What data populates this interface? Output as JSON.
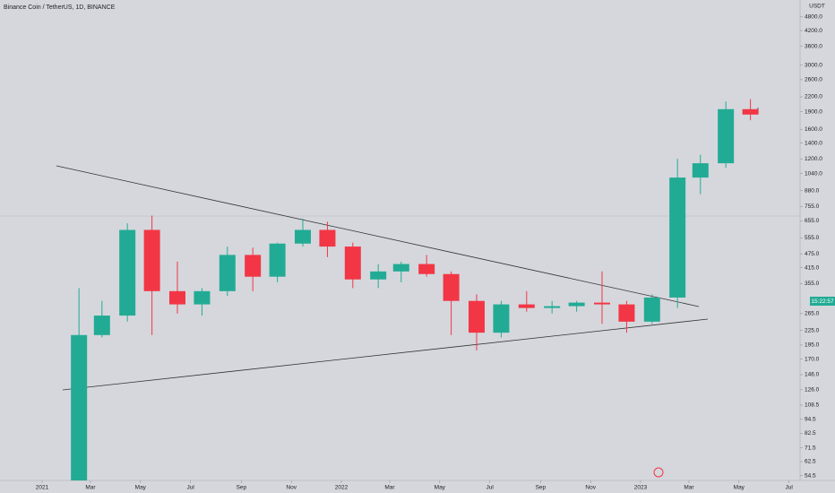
{
  "chart_data": {
    "type": "candlestick",
    "title": "Binance Coin / TetherUS, 1D, BINANCE",
    "y_unit": "USDT",
    "price_box_label": "15:22:57",
    "log_scale": true,
    "up_color": "#22ab94",
    "down_color": "#f23645",
    "x": [
      "2021-02",
      "2021-03",
      "2021-04",
      "2021-05",
      "2021-06",
      "2021-07",
      "2021-08",
      "2021-09",
      "2021-10",
      "2021-11",
      "2021-12",
      "2022-01",
      "2022-02",
      "2022-03",
      "2022-04",
      "2022-05",
      "2022-06",
      "2022-07",
      "2022-08",
      "2022-09",
      "2022-10",
      "2022-11",
      "2022-12",
      "2023-01",
      "2023-02",
      "2023-03",
      "2023-04",
      "2023-05"
    ],
    "open": [
      52,
      215,
      260,
      600,
      330,
      290,
      330,
      470,
      380,
      525,
      600,
      510,
      370,
      400,
      430,
      390,
      300,
      220,
      290,
      280,
      285,
      295,
      290,
      245,
      310,
      1000,
      1150,
      1950
    ],
    "high": [
      340,
      300,
      640,
      690,
      440,
      340,
      510,
      505,
      530,
      670,
      650,
      530,
      430,
      440,
      470,
      400,
      320,
      300,
      330,
      300,
      300,
      400,
      300,
      320,
      1200,
      1250,
      2100,
      2150
    ],
    "low": [
      52,
      210,
      245,
      215,
      265,
      260,
      315,
      330,
      360,
      510,
      460,
      340,
      340,
      360,
      380,
      215,
      185,
      210,
      270,
      265,
      270,
      240,
      220,
      240,
      280,
      850,
      1100,
      1750
    ],
    "close": [
      215,
      260,
      600,
      330,
      290,
      330,
      470,
      380,
      525,
      600,
      510,
      370,
      400,
      430,
      390,
      300,
      220,
      290,
      280,
      285,
      295,
      290,
      245,
      310,
      1000,
      1150,
      1950,
      1850
    ],
    "ylim": [
      52,
      5660
    ],
    "yticks": [
      {
        "value": 4800,
        "label": "4800.0"
      },
      {
        "value": 4200,
        "label": "4200.0"
      },
      {
        "value": 3600,
        "label": "3600.0"
      },
      {
        "value": 3000,
        "label": "3000.0"
      },
      {
        "value": 2600,
        "label": "2600.0"
      },
      {
        "value": 2200,
        "label": "2200.0"
      },
      {
        "value": 1900,
        "label": "1900.0"
      },
      {
        "value": 1600,
        "label": "1600.0"
      },
      {
        "value": 1400,
        "label": "1400.0"
      },
      {
        "value": 1200,
        "label": "1200.0"
      },
      {
        "value": 1040,
        "label": "1040.0"
      },
      {
        "value": 880,
        "label": "880.0"
      },
      {
        "value": 755,
        "label": "755.0"
      },
      {
        "value": 655,
        "label": "655.0"
      },
      {
        "value": 555,
        "label": "555.0"
      },
      {
        "value": 475,
        "label": "475.0"
      },
      {
        "value": 415,
        "label": "415.0"
      },
      {
        "value": 355,
        "label": "355.0"
      },
      {
        "value": 265,
        "label": "265.0"
      },
      {
        "value": 225,
        "label": "225.0"
      },
      {
        "value": 195,
        "label": "195.0"
      },
      {
        "value": 170,
        "label": "170.0"
      },
      {
        "value": 146,
        "label": "146.0"
      },
      {
        "value": 126,
        "label": "126.0"
      },
      {
        "value": 108.5,
        "label": "108.5"
      },
      {
        "value": 94.5,
        "label": "94.5"
      },
      {
        "value": 82.5,
        "label": "82.5"
      },
      {
        "value": 71.5,
        "label": "71.5"
      },
      {
        "value": 62.5,
        "label": "62.5"
      },
      {
        "value": 54.5,
        "label": "54.5"
      }
    ],
    "xticks": [
      {
        "value": "2021-01",
        "label": "2021"
      },
      {
        "value": "2021-03",
        "label": "Mar"
      },
      {
        "value": "2021-05",
        "label": "May"
      },
      {
        "value": "2021-07",
        "label": "Jul"
      },
      {
        "value": "2021-09",
        "label": "Sep"
      },
      {
        "value": "2021-11",
        "label": "Nov"
      },
      {
        "value": "2022-01",
        "label": "2022"
      },
      {
        "value": "2022-03",
        "label": "Mar"
      },
      {
        "value": "2022-05",
        "label": "May"
      },
      {
        "value": "2022-07",
        "label": "Jul"
      },
      {
        "value": "2022-09",
        "label": "Sep"
      },
      {
        "value": "2022-11",
        "label": "Nov"
      },
      {
        "value": "2023-01",
        "label": "2023"
      },
      {
        "value": "2023-03",
        "label": "Mar"
      },
      {
        "value": "2023-05",
        "label": "May"
      },
      {
        "value": "2023-07",
        "label": "Jul"
      }
    ]
  }
}
